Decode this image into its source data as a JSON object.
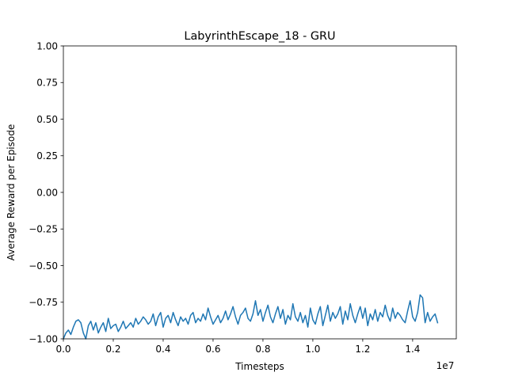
{
  "chart_data": {
    "type": "line",
    "title": "LabyrinthEscape_18 - GRU",
    "xlabel": "Timesteps",
    "ylabel": "Average Reward per Episode",
    "x_offset_label": "1e7",
    "xlim": [
      0.0,
      1.575
    ],
    "ylim": [
      -1.0,
      1.0
    ],
    "x_ticks": [
      0.0,
      0.2,
      0.4,
      0.6,
      0.8,
      1.0,
      1.2,
      1.4
    ],
    "x_tick_labels": [
      "0.0",
      "0.2",
      "0.4",
      "0.6",
      "0.8",
      "1.0",
      "1.2",
      "1.4"
    ],
    "y_ticks": [
      -1.0,
      -0.75,
      -0.5,
      -0.25,
      0.0,
      0.25,
      0.5,
      0.75,
      1.0
    ],
    "y_tick_labels": [
      "−1.00",
      "−0.75",
      "−0.50",
      "−0.25",
      "0.00",
      "0.25",
      "0.50",
      "0.75",
      "1.00"
    ],
    "grid": false,
    "legend": "none",
    "series": [
      {
        "color": "#1f77b4",
        "x": [
          0.0,
          0.01,
          0.02,
          0.03,
          0.04,
          0.05,
          0.06,
          0.07,
          0.08,
          0.09,
          0.1,
          0.11,
          0.12,
          0.13,
          0.14,
          0.15,
          0.16,
          0.17,
          0.18,
          0.19,
          0.2,
          0.21,
          0.22,
          0.23,
          0.24,
          0.25,
          0.26,
          0.27,
          0.28,
          0.29,
          0.3,
          0.31,
          0.32,
          0.33,
          0.34,
          0.35,
          0.36,
          0.37,
          0.38,
          0.39,
          0.4,
          0.41,
          0.42,
          0.43,
          0.44,
          0.45,
          0.46,
          0.47,
          0.48,
          0.49,
          0.5,
          0.51,
          0.52,
          0.53,
          0.54,
          0.55,
          0.56,
          0.57,
          0.58,
          0.59,
          0.6,
          0.61,
          0.62,
          0.63,
          0.64,
          0.65,
          0.66,
          0.67,
          0.68,
          0.69,
          0.7,
          0.71,
          0.72,
          0.73,
          0.74,
          0.75,
          0.76,
          0.77,
          0.78,
          0.79,
          0.8,
          0.81,
          0.82,
          0.83,
          0.84,
          0.85,
          0.86,
          0.87,
          0.88,
          0.89,
          0.9,
          0.91,
          0.92,
          0.93,
          0.94,
          0.95,
          0.96,
          0.97,
          0.98,
          0.99,
          1.0,
          1.01,
          1.02,
          1.03,
          1.04,
          1.05,
          1.06,
          1.07,
          1.08,
          1.09,
          1.1,
          1.11,
          1.12,
          1.13,
          1.14,
          1.15,
          1.16,
          1.17,
          1.18,
          1.19,
          1.2,
          1.21,
          1.22,
          1.23,
          1.24,
          1.25,
          1.26,
          1.27,
          1.28,
          1.29,
          1.3,
          1.31,
          1.32,
          1.33,
          1.34,
          1.35,
          1.36,
          1.37,
          1.38,
          1.39,
          1.4,
          1.41,
          1.42,
          1.43,
          1.44,
          1.45,
          1.46,
          1.47,
          1.48,
          1.49,
          1.5
        ],
        "y": [
          -1.0,
          -0.96,
          -0.94,
          -0.97,
          -0.92,
          -0.88,
          -0.87,
          -0.89,
          -0.96,
          -1.0,
          -0.91,
          -0.88,
          -0.94,
          -0.89,
          -0.96,
          -0.92,
          -0.89,
          -0.95,
          -0.86,
          -0.93,
          -0.91,
          -0.9,
          -0.95,
          -0.92,
          -0.88,
          -0.93,
          -0.91,
          -0.89,
          -0.92,
          -0.86,
          -0.9,
          -0.88,
          -0.85,
          -0.87,
          -0.9,
          -0.88,
          -0.83,
          -0.91,
          -0.85,
          -0.82,
          -0.92,
          -0.86,
          -0.84,
          -0.89,
          -0.82,
          -0.87,
          -0.91,
          -0.85,
          -0.88,
          -0.86,
          -0.9,
          -0.84,
          -0.82,
          -0.89,
          -0.86,
          -0.88,
          -0.83,
          -0.87,
          -0.79,
          -0.85,
          -0.9,
          -0.87,
          -0.84,
          -0.89,
          -0.86,
          -0.81,
          -0.87,
          -0.83,
          -0.78,
          -0.85,
          -0.9,
          -0.84,
          -0.82,
          -0.79,
          -0.86,
          -0.88,
          -0.83,
          -0.74,
          -0.84,
          -0.8,
          -0.88,
          -0.82,
          -0.77,
          -0.85,
          -0.89,
          -0.83,
          -0.78,
          -0.86,
          -0.8,
          -0.9,
          -0.84,
          -0.87,
          -0.76,
          -0.85,
          -0.88,
          -0.82,
          -0.89,
          -0.84,
          -0.92,
          -0.79,
          -0.87,
          -0.9,
          -0.83,
          -0.78,
          -0.91,
          -0.84,
          -0.77,
          -0.88,
          -0.82,
          -0.86,
          -0.83,
          -0.78,
          -0.9,
          -0.81,
          -0.87,
          -0.76,
          -0.84,
          -0.89,
          -0.83,
          -0.78,
          -0.86,
          -0.79,
          -0.91,
          -0.83,
          -0.87,
          -0.8,
          -0.88,
          -0.82,
          -0.85,
          -0.77,
          -0.84,
          -0.88,
          -0.79,
          -0.86,
          -0.82,
          -0.84,
          -0.87,
          -0.89,
          -0.81,
          -0.74,
          -0.85,
          -0.88,
          -0.82,
          -0.7,
          -0.72,
          -0.89,
          -0.82,
          -0.88,
          -0.85,
          -0.83,
          -0.89
        ]
      }
    ]
  }
}
